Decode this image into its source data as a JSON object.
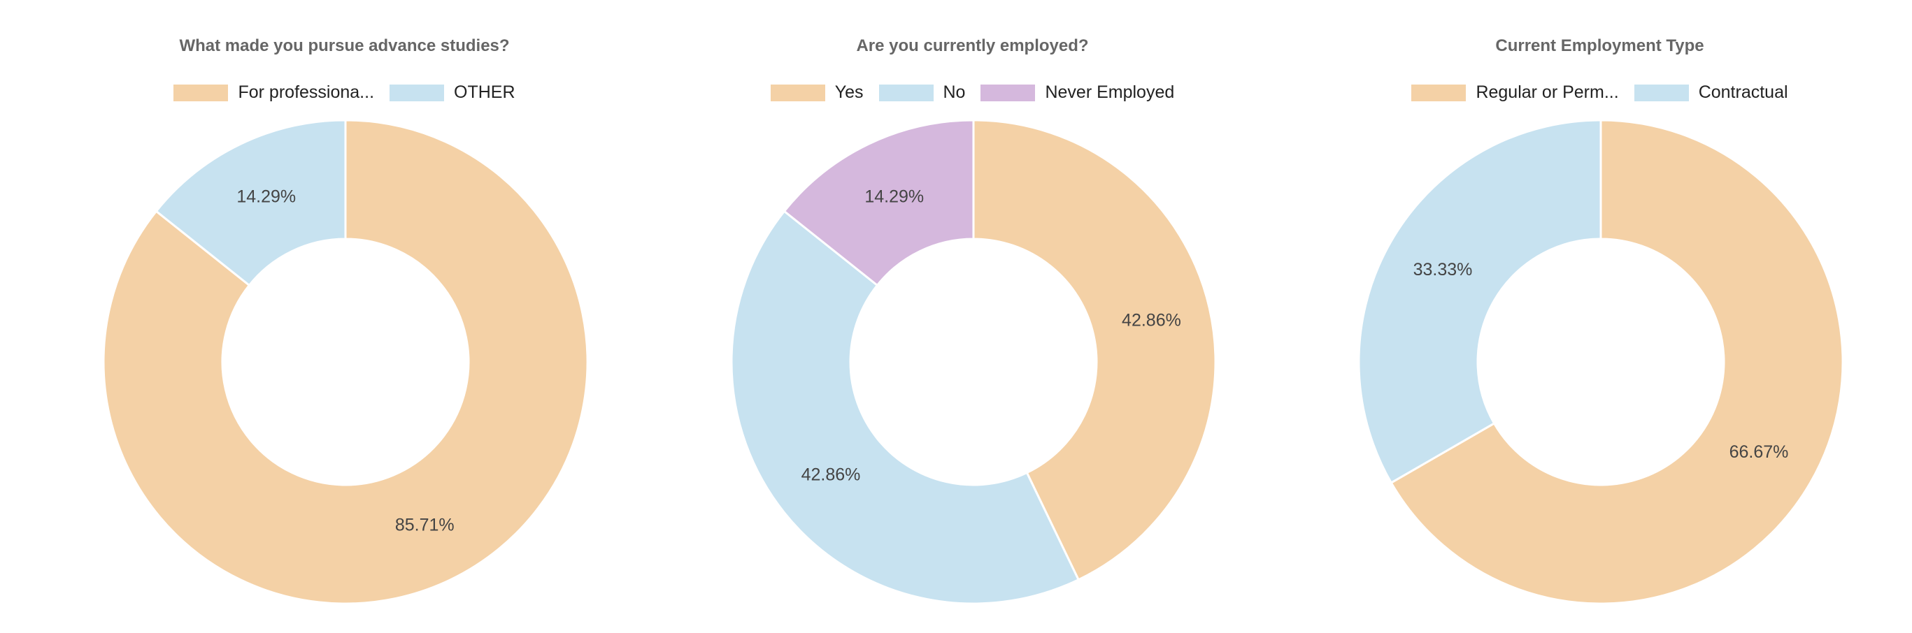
{
  "chart_data": [
    {
      "type": "pie",
      "donut": true,
      "title": "What made you pursue advance studies?",
      "series": [
        {
          "name": "For professiona...",
          "value": 85.71,
          "color": "#f4d1a6"
        },
        {
          "name": "OTHER",
          "value": 14.29,
          "color": "#c7e2f0"
        }
      ],
      "data_labels": [
        "85.71%",
        "14.29%"
      ],
      "legend": "top-center"
    },
    {
      "type": "pie",
      "donut": true,
      "title": "Are you currently employed?",
      "series": [
        {
          "name": "Yes",
          "value": 42.86,
          "color": "#f4d1a6"
        },
        {
          "name": "No",
          "value": 42.86,
          "color": "#c7e2f0"
        },
        {
          "name": "Never Employed",
          "value": 14.29,
          "color": "#d5b8dd"
        }
      ],
      "data_labels": [
        "42.86%",
        "42.86%",
        "14.29%"
      ],
      "legend": "top-center"
    },
    {
      "type": "pie",
      "donut": true,
      "title": "Current Employment Type",
      "series": [
        {
          "name": "Regular or Perm...",
          "value": 66.67,
          "color": "#f4d1a6"
        },
        {
          "name": "Contractual",
          "value": 33.33,
          "color": "#c7e2f0"
        }
      ],
      "data_labels": [
        "66.67%",
        "33.33%"
      ],
      "legend": "top-center"
    }
  ]
}
